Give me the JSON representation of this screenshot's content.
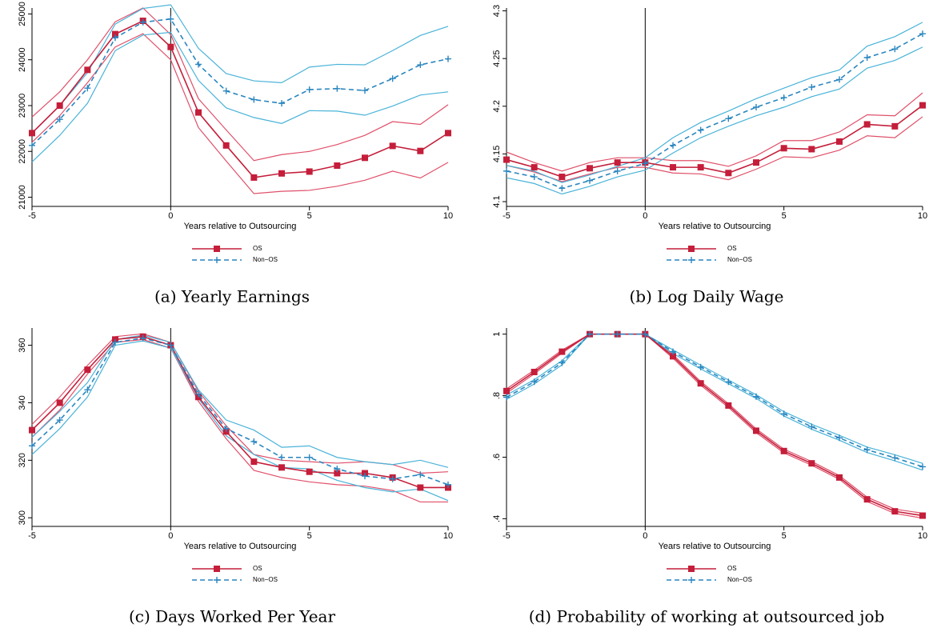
{
  "chart_data": [
    {
      "type": "line",
      "caption": "(a) Yearly Earnings",
      "xlabel": "Years relative to Outsourcing",
      "x": [
        -5,
        -4,
        -3,
        -2,
        -1,
        0,
        1,
        2,
        3,
        4,
        5,
        6,
        7,
        8,
        9,
        10
      ],
      "xlim": [
        -5,
        10
      ],
      "xticks": [
        -5,
        0,
        5,
        10
      ],
      "vline": 0,
      "ylim": [
        20800,
        25130
      ],
      "yticks": [
        21000,
        22000,
        23000,
        24000,
        25000
      ],
      "series": [
        {
          "name": "OS",
          "color": "#c41e3a",
          "ci_color": "#e0506a",
          "marker": "square",
          "dash": false,
          "values": [
            22400,
            23000,
            23780,
            24560,
            24850,
            24280,
            22850,
            22130,
            21430,
            21520,
            21560,
            21690,
            21860,
            22120,
            22010,
            22400
          ],
          "ci_upper": [
            22750,
            23300,
            24000,
            24830,
            25130,
            24550,
            23150,
            22470,
            21800,
            21930,
            22000,
            22150,
            22350,
            22650,
            22590,
            23020
          ],
          "ci_lower": [
            22200,
            22780,
            23500,
            24280,
            24570,
            24000,
            22520,
            21790,
            21080,
            21130,
            21150,
            21240,
            21370,
            21570,
            21420,
            21760
          ]
        },
        {
          "name": "Non−OS",
          "color": "#2a86bf",
          "ci_color": "#4ab3d8",
          "marker": "plus",
          "dash": true,
          "values": [
            22130,
            22700,
            23380,
            24480,
            24820,
            24890,
            23900,
            23320,
            23130,
            23050,
            23350,
            23370,
            23330,
            23590,
            23890,
            24020
          ],
          "ci_upper": [
            22400,
            23000,
            23720,
            24780,
            25120,
            25200,
            24250,
            23700,
            23540,
            23500,
            23840,
            23900,
            23890,
            24200,
            24530,
            24730
          ],
          "ci_lower": [
            21770,
            22350,
            23050,
            24200,
            24540,
            24600,
            23550,
            22950,
            22740,
            22610,
            22890,
            22880,
            22790,
            22990,
            23230,
            23300
          ]
        }
      ]
    },
    {
      "type": "line",
      "caption": "(b) Log Daily Wage",
      "xlabel": "Years relative to Outsourcing",
      "x": [
        -5,
        -4,
        -3,
        -2,
        -1,
        0,
        1,
        2,
        3,
        4,
        5,
        6,
        7,
        8,
        9,
        10
      ],
      "xlim": [
        -5,
        10
      ],
      "xticks": [
        -5,
        0,
        5,
        10
      ],
      "vline": 0,
      "ylim": [
        4.095,
        4.303
      ],
      "yticks": [
        {
          "value": 4.1,
          "label": "4.1"
        },
        4.15,
        {
          "value": 4.2,
          "label": "4.2"
        },
        4.25,
        {
          "value": 4.3,
          "label": "4.3"
        }
      ],
      "series": [
        {
          "name": "OS",
          "color": "#c41e3a",
          "ci_color": "#e0506a",
          "marker": "square",
          "dash": false,
          "values": [
            4.144,
            4.136,
            4.126,
            4.135,
            4.141,
            4.141,
            4.136,
            4.136,
            4.13,
            4.141,
            4.156,
            4.155,
            4.163,
            4.181,
            4.179,
            4.201
          ],
          "ci_upper": [
            4.152,
            4.141,
            4.132,
            4.141,
            4.146,
            4.146,
            4.143,
            4.143,
            4.137,
            4.148,
            4.164,
            4.164,
            4.173,
            4.191,
            4.19,
            4.214
          ],
          "ci_lower": [
            4.138,
            4.131,
            4.121,
            4.129,
            4.136,
            4.136,
            4.13,
            4.129,
            4.123,
            4.134,
            4.147,
            4.146,
            4.154,
            4.169,
            4.167,
            4.189
          ]
        },
        {
          "name": "Non−OS",
          "color": "#2a86bf",
          "ci_color": "#4ab3d8",
          "marker": "plus",
          "dash": true,
          "values": [
            4.132,
            4.126,
            4.114,
            4.122,
            4.132,
            4.14,
            4.159,
            4.175,
            4.187,
            4.199,
            4.209,
            4.22,
            4.228,
            4.251,
            4.26,
            4.276
          ],
          "ci_upper": [
            4.138,
            4.132,
            4.12,
            4.128,
            4.137,
            4.146,
            4.167,
            4.183,
            4.195,
            4.208,
            4.219,
            4.23,
            4.238,
            4.263,
            4.273,
            4.288
          ],
          "ci_lower": [
            4.125,
            4.119,
            4.108,
            4.116,
            4.126,
            4.133,
            4.151,
            4.167,
            4.179,
            4.19,
            4.199,
            4.21,
            4.218,
            4.24,
            4.248,
            4.262
          ]
        }
      ]
    },
    {
      "type": "line",
      "caption": "(c) Days Worked Per Year",
      "xlabel": "Years relative to Outsourcing",
      "x": [
        -5,
        -4,
        -3,
        -2,
        -1,
        0,
        1,
        2,
        3,
        4,
        5,
        6,
        7,
        8,
        9,
        10
      ],
      "xlim": [
        -5,
        10
      ],
      "xticks": [
        -5,
        0,
        5,
        10
      ],
      "vline": 0,
      "ylim": [
        297,
        366
      ],
      "yticks": [
        300,
        320,
        340,
        360
      ],
      "series": [
        {
          "name": "OS",
          "color": "#c41e3a",
          "ci_color": "#e0506a",
          "marker": "square",
          "dash": false,
          "values": [
            330.5,
            340,
            351.5,
            362,
            363,
            360,
            342,
            330,
            319.5,
            317.5,
            316,
            315.5,
            315.5,
            314,
            310.5,
            310.5
          ],
          "ci_upper": [
            332.5,
            342,
            353,
            363,
            364,
            361,
            344,
            332,
            322,
            320,
            319.5,
            319,
            319.5,
            318.5,
            315.5,
            316
          ],
          "ci_lower": [
            328,
            337.5,
            350,
            361,
            362,
            359,
            340.5,
            327.5,
            316.5,
            314,
            312.5,
            311.5,
            311,
            309.5,
            305.5,
            305.5
          ]
        },
        {
          "name": "Non−OS",
          "color": "#2a86bf",
          "ci_color": "#4ab3d8",
          "marker": "plus",
          "dash": true,
          "values": [
            325,
            334,
            344.5,
            361,
            362.5,
            360,
            343,
            331,
            326.5,
            321,
            321,
            317,
            314.5,
            313.5,
            315,
            311.5
          ],
          "ci_upper": [
            328,
            337,
            347,
            362,
            363.5,
            361,
            344.5,
            334,
            330.5,
            324.5,
            325,
            321,
            319.5,
            318.5,
            320,
            317.5
          ],
          "ci_lower": [
            322,
            331,
            342,
            360,
            361.5,
            359,
            341.5,
            328.5,
            322,
            317.5,
            317,
            313,
            310.5,
            309,
            310,
            306
          ]
        }
      ]
    },
    {
      "type": "line",
      "caption": "(d) Probability of working at outsourced job",
      "xlabel": "Years relative to Outsourcing",
      "x": [
        -5,
        -4,
        -3,
        -2,
        -1,
        0,
        1,
        2,
        3,
        4,
        5,
        6,
        7,
        8,
        9,
        10
      ],
      "xlim": [
        -5,
        10
      ],
      "xticks": [
        -5,
        0,
        5,
        10
      ],
      "vline": 0,
      "ylim": [
        0.375,
        1.02
      ],
      "yticks": [
        {
          "value": 0.4,
          "label": ".4"
        },
        {
          "value": 0.6,
          "label": ".6"
        },
        {
          "value": 0.8,
          "label": ".8"
        },
        1
      ],
      "series": [
        {
          "name": "OS",
          "color": "#c41e3a",
          "ci_color": "#e0506a",
          "marker": "square",
          "dash": false,
          "values": [
            0.815,
            0.877,
            0.943,
            1,
            1,
            1,
            0.928,
            0.84,
            0.768,
            0.686,
            0.62,
            0.58,
            0.534,
            0.463,
            0.424,
            0.41
          ],
          "ci_upper": [
            0.822,
            0.883,
            0.948,
            1,
            1,
            1,
            0.934,
            0.846,
            0.774,
            0.692,
            0.626,
            0.586,
            0.54,
            0.47,
            0.431,
            0.418
          ],
          "ci_lower": [
            0.808,
            0.871,
            0.938,
            1,
            1,
            1,
            0.922,
            0.834,
            0.762,
            0.68,
            0.614,
            0.574,
            0.528,
            0.456,
            0.417,
            0.402
          ]
        },
        {
          "name": "Non−OS",
          "color": "#2a86bf",
          "ci_color": "#4ab3d8",
          "marker": "plus",
          "dash": true,
          "values": [
            0.795,
            0.845,
            0.907,
            1,
            1,
            1,
            0.943,
            0.893,
            0.845,
            0.797,
            0.741,
            0.699,
            0.663,
            0.624,
            0.598,
            0.569
          ],
          "ci_upper": [
            0.802,
            0.852,
            0.914,
            1,
            1,
            1,
            0.949,
            0.899,
            0.851,
            0.803,
            0.748,
            0.707,
            0.671,
            0.633,
            0.608,
            0.58
          ],
          "ci_lower": [
            0.788,
            0.838,
            0.9,
            1,
            1,
            1,
            0.937,
            0.887,
            0.839,
            0.791,
            0.734,
            0.691,
            0.655,
            0.615,
            0.588,
            0.558
          ]
        }
      ]
    }
  ]
}
